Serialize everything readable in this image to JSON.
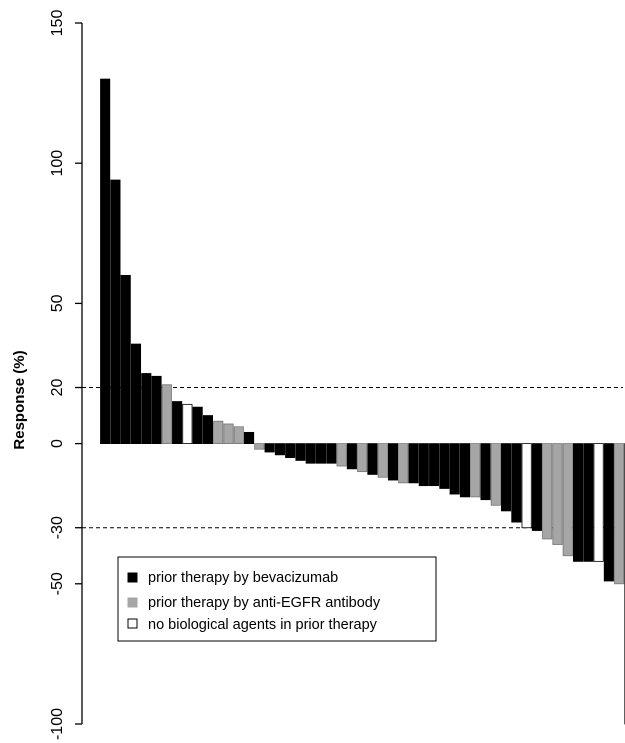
{
  "chart_data": {
    "type": "bar",
    "title": "",
    "xlabel": "",
    "ylabel": "Response (%)",
    "ylim": [
      -100,
      150
    ],
    "yticks": [
      {
        "value": 150,
        "label": "150"
      },
      {
        "value": 100,
        "label": "100"
      },
      {
        "value": 50,
        "label": "50"
      },
      {
        "value": 20,
        "label": "20"
      },
      {
        "value": 0,
        "label": "0"
      },
      {
        "value": -30,
        "label": "-30"
      },
      {
        "value": -50,
        "label": "-50"
      },
      {
        "value": -100,
        "label": "-100"
      }
    ],
    "reference_lines": [
      20,
      -30
    ],
    "grid": false,
    "legend_position": "bottom-left",
    "groups": [
      {
        "key": "B",
        "label": "prior therapy by bevacizumab",
        "color": "#000000"
      },
      {
        "key": "E",
        "label": "prior therapy by anti-EGFR antibody",
        "color": "#a6a6a6"
      },
      {
        "key": "N",
        "label": "no biological agents in prior therapy",
        "color": "#ffffff"
      }
    ],
    "values": [
      130,
      94,
      60,
      35.5,
      25,
      24,
      21,
      15,
      14,
      13,
      10,
      8,
      7,
      6,
      4,
      -2,
      -3,
      -4,
      -5,
      -6,
      -7,
      -7,
      -7,
      -8,
      -9,
      -10,
      -11,
      -12,
      -13,
      -14,
      -14,
      -15,
      -15,
      -16,
      -18,
      -19,
      -19,
      -20,
      -22,
      -24,
      -28,
      -30,
      -31,
      -34,
      -36,
      -40,
      -42,
      -42,
      -42,
      -49,
      -50,
      -100
    ],
    "groups_by_bar": [
      "B",
      "B",
      "B",
      "B",
      "B",
      "B",
      "E",
      "B",
      "N",
      "B",
      "B",
      "E",
      "E",
      "E",
      "B",
      "E",
      "B",
      "B",
      "B",
      "B",
      "B",
      "B",
      "B",
      "E",
      "B",
      "E",
      "B",
      "E",
      "B",
      "E",
      "B",
      "B",
      "B",
      "B",
      "B",
      "B",
      "E",
      "B",
      "E",
      "B",
      "B",
      "N",
      "B",
      "E",
      "E",
      "E",
      "B",
      "B",
      "N",
      "B",
      "E",
      "B"
    ]
  }
}
